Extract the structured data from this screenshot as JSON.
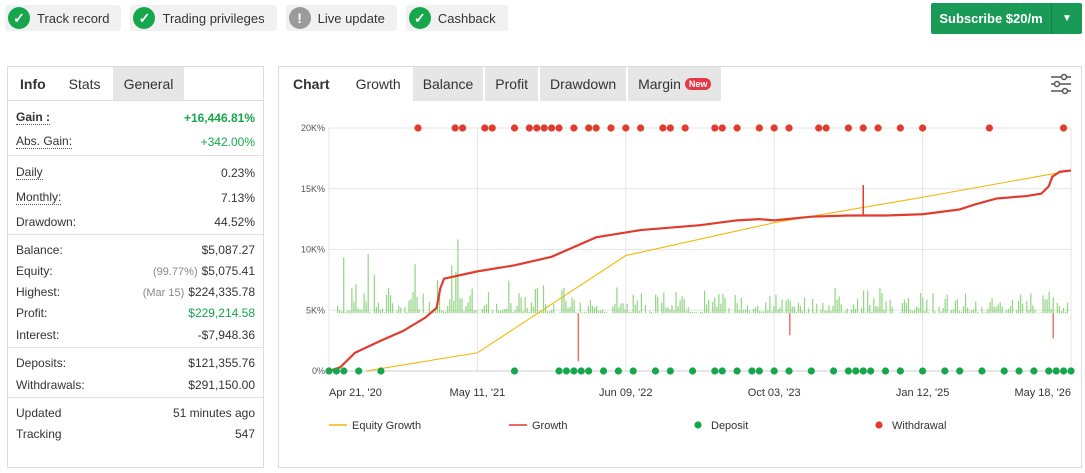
{
  "badges": [
    {
      "label": "Track record",
      "status": "ok"
    },
    {
      "label": "Trading privileges",
      "status": "ok"
    },
    {
      "label": "Live update",
      "status": "warn"
    },
    {
      "label": "Cashback",
      "status": "ok"
    }
  ],
  "subscribe": {
    "label": "Subscribe $20/m",
    "color": "#1a9a57"
  },
  "left_tabs": {
    "title": "Info",
    "active": "Stats",
    "other": "General"
  },
  "stats": {
    "gain": {
      "label": "Gain :",
      "value": "+16,446.81%"
    },
    "abs_gain": {
      "label": "Abs. Gain:",
      "value": "+342.00%"
    },
    "daily": {
      "label": "Daily",
      "value": "0.23%"
    },
    "monthly": {
      "label": "Monthly:",
      "value": "7.13%"
    },
    "drawdown": {
      "label": "Drawdown:",
      "value": "44.52%"
    },
    "balance": {
      "label": "Balance:",
      "value": "$5,087.27"
    },
    "equity": {
      "label": "Equity:",
      "sub": "(99.77%)",
      "value": "$5,075.41"
    },
    "highest": {
      "label": "Highest:",
      "sub": "(Mar 15)",
      "value": "$224,335.78"
    },
    "profit": {
      "label": "Profit:",
      "value": "$229,214.58"
    },
    "interest": {
      "label": "Interest:",
      "value": "-$7,948.36"
    },
    "deposits": {
      "label": "Deposits:",
      "value": "$121,355.76"
    },
    "withdrawals": {
      "label": "Withdrawals:",
      "value": "$291,150.00"
    },
    "updated": {
      "label": "Updated",
      "value": "51 minutes ago"
    },
    "tracking": {
      "label": "Tracking",
      "value": "547"
    }
  },
  "chart_tabs": {
    "title": "Chart",
    "items": [
      "Growth",
      "Balance",
      "Profit",
      "Drawdown",
      "Margin"
    ],
    "active": "Growth",
    "new_badge": "New"
  },
  "chart_data": {
    "type": "line",
    "y_ticks": [
      "0%",
      "5K%",
      "10K%",
      "15K%",
      "20K%"
    ],
    "ylim": [
      0,
      20000
    ],
    "x_ticks": [
      "Apr 21, '20",
      "May 11, '21",
      "Jun 09, '22",
      "Oct 03, '23",
      "Jan 12, '25",
      "May 18, '26"
    ],
    "grid": true,
    "legend_position": "bottom",
    "series": [
      {
        "name": "Equity Growth",
        "color": "#f2b705",
        "x": [
          0.05,
          0.2,
          0.4,
          0.6,
          0.8,
          1.0
        ],
        "values": [
          0,
          1500,
          9500,
          12200,
          14300,
          16500
        ]
      },
      {
        "name": "Growth",
        "color": "#e23b2e",
        "x": [
          0,
          0.015,
          0.035,
          0.07,
          0.1,
          0.13,
          0.145,
          0.15,
          0.155,
          0.2,
          0.25,
          0.3,
          0.36,
          0.42,
          0.5,
          0.55,
          0.58,
          0.6,
          0.65,
          0.7,
          0.72,
          0.75,
          0.8,
          0.85,
          0.87,
          0.9,
          0.94,
          0.96,
          0.97,
          0.975,
          0.985,
          1.0
        ],
        "values": [
          0,
          300,
          1500,
          2500,
          3300,
          4400,
          5200,
          6800,
          7600,
          8200,
          8700,
          9400,
          11000,
          11600,
          12000,
          12400,
          12500,
          12400,
          12700,
          12800,
          12800,
          12800,
          12900,
          13300,
          13700,
          14200,
          14400,
          14600,
          15200,
          16000,
          16400,
          16500
        ]
      }
    ],
    "deposit_markers": {
      "name": "Deposit",
      "color": "#16a64b",
      "x": [
        0.0,
        0.01,
        0.02,
        0.04,
        0.07,
        0.25,
        0.31,
        0.32,
        0.33,
        0.34,
        0.35,
        0.37,
        0.39,
        0.41,
        0.44,
        0.46,
        0.49,
        0.52,
        0.53,
        0.55,
        0.57,
        0.58,
        0.6,
        0.62,
        0.65,
        0.68,
        0.7,
        0.71,
        0.72,
        0.73,
        0.75,
        0.77,
        0.8,
        0.83,
        0.85,
        0.88,
        0.91,
        0.93,
        0.95,
        0.97,
        0.98,
        0.99,
        1.0
      ]
    },
    "withdrawal_markers": {
      "name": "Withdrawal",
      "color": "#e23b2e",
      "x": [
        0.12,
        0.17,
        0.18,
        0.21,
        0.22,
        0.25,
        0.27,
        0.28,
        0.29,
        0.3,
        0.31,
        0.33,
        0.35,
        0.36,
        0.38,
        0.4,
        0.42,
        0.45,
        0.46,
        0.48,
        0.52,
        0.53,
        0.55,
        0.58,
        0.6,
        0.62,
        0.66,
        0.67,
        0.7,
        0.72,
        0.74,
        0.77,
        0.8,
        0.89,
        0.99
      ]
    },
    "bar_color": "#7cce6b"
  }
}
